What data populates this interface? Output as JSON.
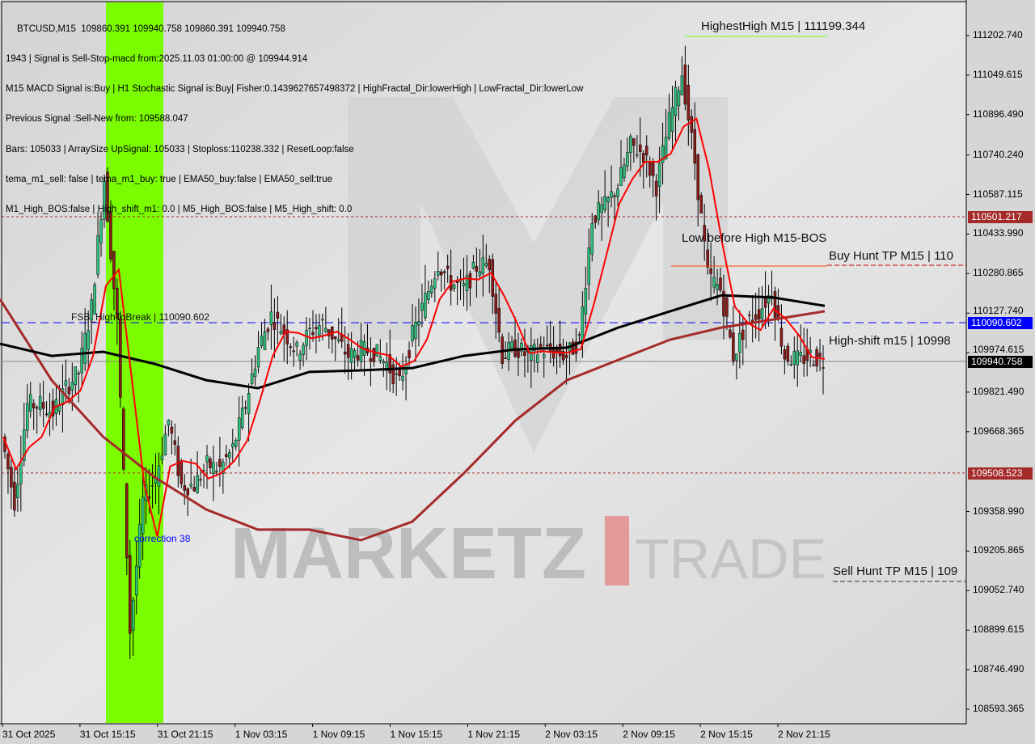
{
  "header": {
    "symbol_line": "BTCUSD,M15  109860.391 109940.758 109860.391 109940.758",
    "lines": [
      "1943 | Signal is Sell-Stop-macd from:2025.11.03 01:00:00 @ 109944.914",
      "M15 MACD Signal is:Buy | H1 Stochastic Signal is:Buy| Fisher:0.1439627657498372 | HighFractal_Dir:lowerHigh | LowFractal_Dir:lowerLow",
      "Previous Signal :Sell-New from: 109588.047",
      "Bars: 105033 | ArraySize UpSignal: 105033 | Stoploss:110238.332 | ResetLoop:false",
      "tema_m1_sell: false | tema_m1_buy: true | EMA50_buy:false | EMA50_sell:true",
      "M1_High_BOS:false | High_shift_m1: 0.0 | M5_High_BOS:false | M5_High_shift: 0.0"
    ]
  },
  "annotations": {
    "fsb": "FSB_HighToBreak | 110090.602",
    "correction": "correction 38",
    "highest_high": "HighestHigh   M15 | 111199.344",
    "low_before_high": "Low before High   M15-BOS",
    "buy_hunt": "Buy Hunt TP M15 | 110",
    "high_shift": "High-shift m15 | 10998",
    "sell_hunt": "Sell Hunt TP M15 | 109",
    "watermark_left": "MARKETZ",
    "watermark_right": "TRADE"
  },
  "chart_data": {
    "type": "candlestick",
    "symbol": "BTCUSD",
    "timeframe": "M15",
    "ylim": [
      108520,
      111340
    ],
    "y_ticks": [
      "111202.740",
      "111049.615",
      "110896.490",
      "110740.240",
      "110587.115",
      "110433.990",
      "110280.865",
      "110127.740",
      "109974.615",
      "109821.490",
      "109668.365",
      "109358.990",
      "109205.865",
      "109052.740",
      "108899.615",
      "108746.490",
      "108593.365"
    ],
    "x_ticks": [
      "31 Oct 2025",
      "31 Oct 15:15",
      "31 Oct 21:15",
      "1 Nov 03:15",
      "1 Nov 09:15",
      "1 Nov 15:15",
      "1 Nov 21:15",
      "2 Nov 03:15",
      "2 Nov 09:15",
      "2 Nov 15:15",
      "2 Nov 21:15"
    ],
    "closes_approx": [
      109649,
      109398,
      109774,
      109774,
      109743,
      109837,
      109900,
      110150,
      110651,
      110088,
      108897,
      109398,
      109492,
      109712,
      109461,
      109461,
      109539,
      109524,
      109602,
      109774,
      109994,
      110119,
      110056,
      109978,
      110056,
      110088,
      110025,
      109962,
      109984,
      109978,
      109931,
      109853,
      110041,
      110182,
      110322,
      110244,
      110222,
      110307,
      110322,
      109962,
      109994,
      109962,
      109984,
      109978,
      109962,
      110025,
      110495,
      110542,
      110620,
      110777,
      110745,
      110620,
      110871,
      111059,
      110714,
      110275,
      110219,
      109962,
      110088,
      110135,
      110213,
      109962,
      109947,
      109962,
      109941
    ],
    "ma_black": [
      110009,
      109962,
      109978,
      109931,
      109868,
      109837,
      109900,
      109906,
      109915,
      109962,
      109987,
      109994,
      110072,
      110135,
      110197,
      110188,
      110156
    ],
    "ma_brown": [
      110182,
      109868,
      109649,
      109492,
      109367,
      109289,
      109289,
      109248,
      109320,
      109508,
      109712,
      109868,
      109947,
      110025,
      110072,
      110103,
      110135
    ],
    "levels": [
      {
        "price": 110501.217,
        "label": "110501.217",
        "color": "#a52a2a",
        "style": "dotted"
      },
      {
        "price": 110090.602,
        "label": "110090.602",
        "color": "#0000ff",
        "style": "dashed"
      },
      {
        "price": 109940.758,
        "label": "109940.758",
        "color": "#000000",
        "style": "solid"
      },
      {
        "price": 109508.523,
        "label": "109508.523",
        "color": "#a52a2a",
        "style": "dotted"
      }
    ],
    "colors": {
      "bull": "#2ec27e",
      "bear": "#8b1a1a",
      "highlight_band": "#7cfc00",
      "red_line": "#ff0000"
    }
  }
}
